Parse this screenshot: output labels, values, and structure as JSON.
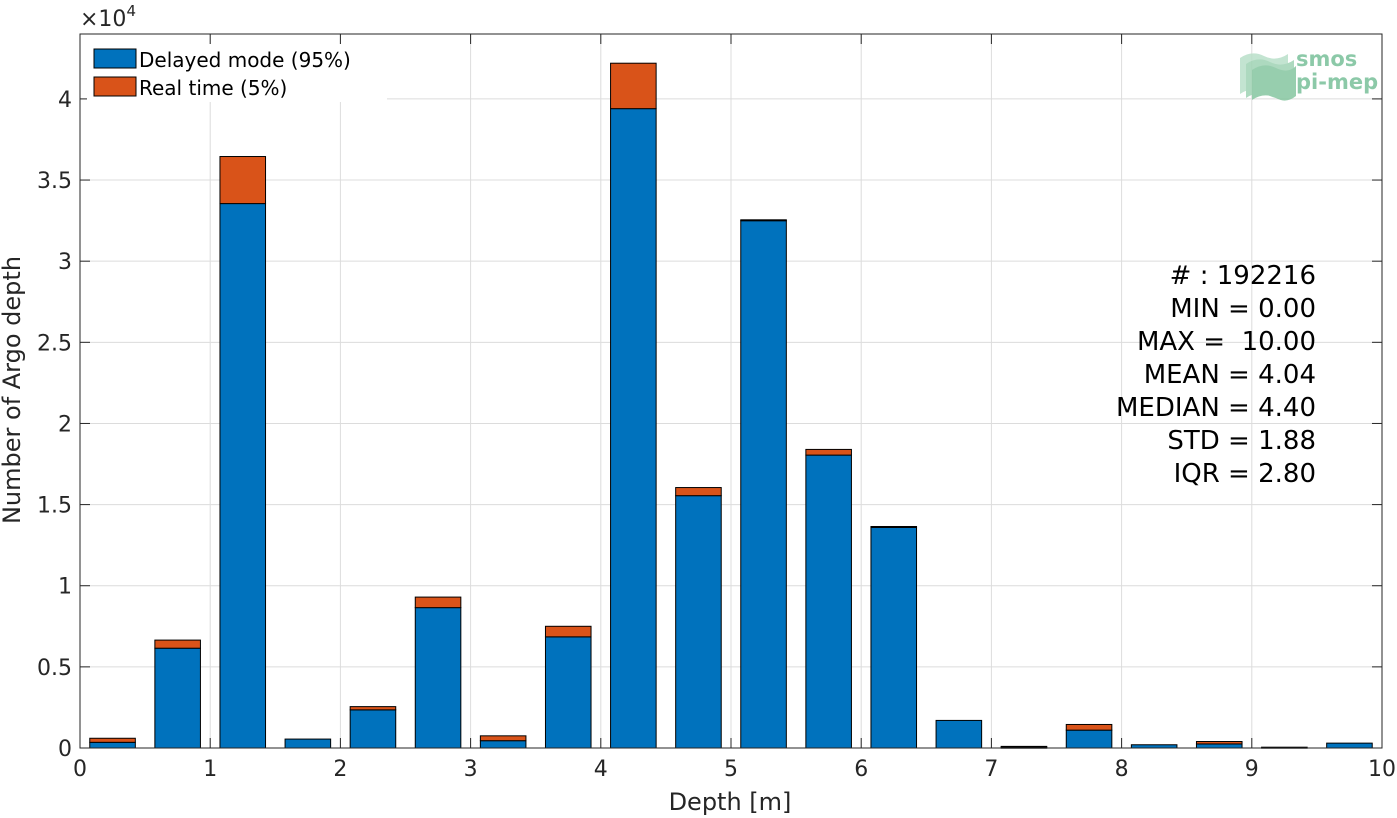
{
  "chart_data": {
    "type": "bar",
    "stacked": true,
    "xlabel": "Depth [m]",
    "ylabel": "Number of Argo depth",
    "y_multiplier": "×10",
    "y_multiplier_exponent": "4",
    "xlim": [
      0,
      10
    ],
    "ylim": [
      0,
      44000
    ],
    "xticks": [
      0,
      1,
      2,
      3,
      4,
      5,
      6,
      7,
      8,
      9,
      10
    ],
    "yticks": [
      0,
      5000,
      10000,
      15000,
      20000,
      25000,
      30000,
      35000,
      40000
    ],
    "ytick_labels": [
      "0",
      "0.5",
      "1",
      "1.5",
      "2",
      "2.5",
      "3",
      "3.5",
      "4"
    ],
    "grid": true,
    "legend_position": "top-left",
    "bar_width": 0.35,
    "x": [
      0.25,
      0.75,
      1.25,
      1.75,
      2.25,
      2.75,
      3.25,
      3.75,
      4.25,
      4.75,
      5.25,
      5.75,
      6.25,
      6.75,
      7.25,
      7.75,
      8.25,
      8.75,
      9.25,
      9.75
    ],
    "series": [
      {
        "name": "Delayed mode (95%)",
        "color": "#0072bd",
        "values": [
          350,
          6150,
          33550,
          550,
          2350,
          8650,
          450,
          6850,
          39400,
          15550,
          32500,
          18050,
          13600,
          1700,
          50,
          1100,
          200,
          250,
          50,
          300
        ]
      },
      {
        "name": "Real time (5%)",
        "color": "#d95319",
        "values": [
          250,
          500,
          2900,
          0,
          200,
          650,
          300,
          650,
          2800,
          500,
          50,
          350,
          50,
          0,
          50,
          350,
          0,
          150,
          0,
          0
        ]
      }
    ],
    "annotations": [
      "# : 192216",
      "MIN = 0.00",
      "MAX =  10.00",
      "MEAN = 4.04",
      "MEDIAN = 4.40",
      "STD = 1.88",
      "IQR = 2.80"
    ]
  },
  "logo": {
    "line1": "smos",
    "line2": "pi-mep",
    "color": "#8cc9a8"
  }
}
